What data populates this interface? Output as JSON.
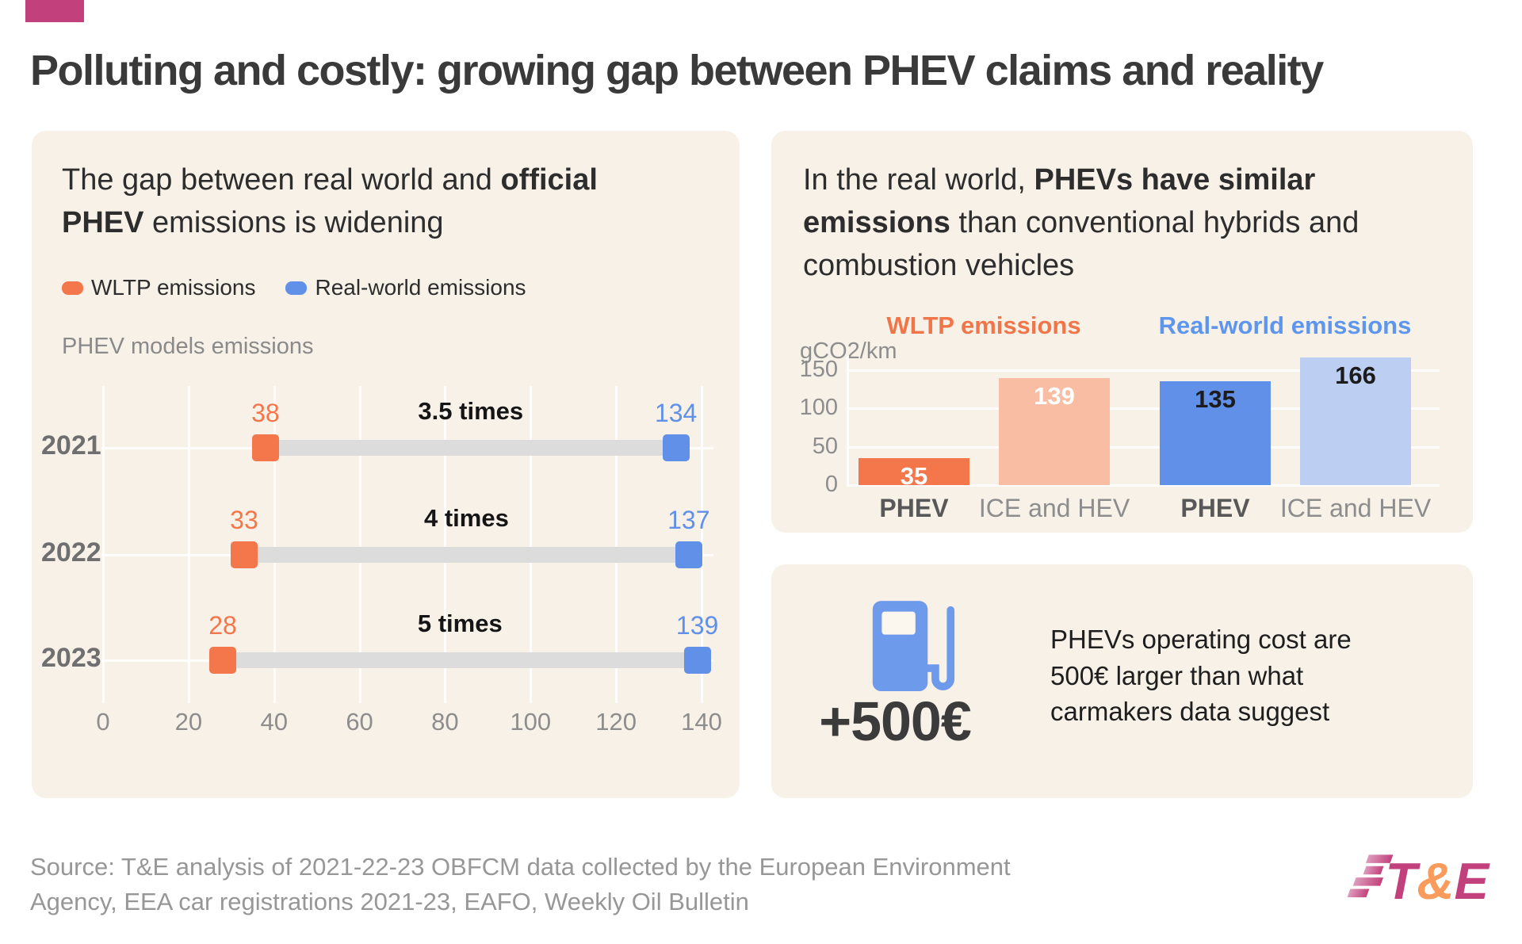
{
  "title": "Polluting and costly: growing gap between PHEV claims and reality",
  "colors": {
    "accent_magenta": "#C2417C",
    "orange": "#F4764B",
    "light_orange": "#F9BDA3",
    "blue": "#6090E8",
    "light_blue": "#BDCEF3",
    "panel_bg": "#F8F1E8",
    "gap_bar_gray": "#DCDCDC",
    "logo_magenta": "#C2417C",
    "logo_orange": "#F89B5D",
    "pump_blue": "#6E9AEC"
  },
  "left_panel": {
    "heading": {
      "pre": "The gap between real world and ",
      "bold": "official PHEV",
      "post": " emissions is widening"
    },
    "legend": [
      {
        "label": "WLTP emissions",
        "color": "#F4764B"
      },
      {
        "label": "Real-world emissions",
        "color": "#6090E8"
      }
    ],
    "chart_label": "PHEV models emissions"
  },
  "right_top_panel": {
    "heading": {
      "pre": "In the real world, ",
      "bold": "PHEVs have similar emissions",
      "post": " than conventional hybrids and combustion vehicles"
    },
    "ylabel": "gCO2/km"
  },
  "right_bottom_panel": {
    "icon": "fuel-pump-icon",
    "stat": "+500€",
    "text": "PHEVs operating cost are 500€ larger than what carmakers data suggest"
  },
  "footer": {
    "source": "Source: T&E analysis of 2021-22-23 OBFCM data collected by the European Environment Agency, EEA car registrations 2021-23, EAFO, Weekly Oil Bulletin",
    "logo": {
      "t": "T",
      "amp": "&",
      "e": "E"
    }
  },
  "chart_data": [
    {
      "type": "dumbbell",
      "title": "PHEV models emissions",
      "categories": [
        "2021",
        "2022",
        "2023"
      ],
      "series": [
        {
          "name": "WLTP emissions",
          "color": "#F4764B",
          "values": [
            38,
            33,
            28
          ]
        },
        {
          "name": "Real-world emissions",
          "color": "#6090E8",
          "values": [
            134,
            137,
            139
          ]
        }
      ],
      "gap_labels": [
        "3.5 times",
        "4 times",
        "5 times"
      ],
      "xlim": [
        0,
        140
      ],
      "x_ticks": [
        0,
        20,
        40,
        60,
        80,
        100,
        120,
        140
      ],
      "grid": true,
      "legend_position": "top"
    },
    {
      "type": "bar",
      "ylabel": "gCO2/km",
      "ylim": [
        0,
        175
      ],
      "y_ticks": [
        0,
        50,
        100,
        150
      ],
      "grid": true,
      "groups": [
        {
          "name": "WLTP emissions",
          "header_color": "#F0764A",
          "bars": [
            {
              "label": "PHEV",
              "value": 35,
              "color": "#F4764B",
              "value_color": "#FFFFFF",
              "emphasis": true
            },
            {
              "label": "ICE and HEV",
              "value": 139,
              "color": "#F9BDA3",
              "value_color": "#FFFFFF",
              "emphasis": false
            }
          ]
        },
        {
          "name": "Real-world emissions",
          "header_color": "#5E96EE",
          "bars": [
            {
              "label": "PHEV",
              "value": 135,
              "color": "#6090E8",
              "value_color": "#1C1C1C",
              "emphasis": true
            },
            {
              "label": "ICE and HEV",
              "value": 166,
              "color": "#BDCEF3",
              "value_color": "#1C1C1C",
              "emphasis": false
            }
          ]
        }
      ]
    }
  ]
}
